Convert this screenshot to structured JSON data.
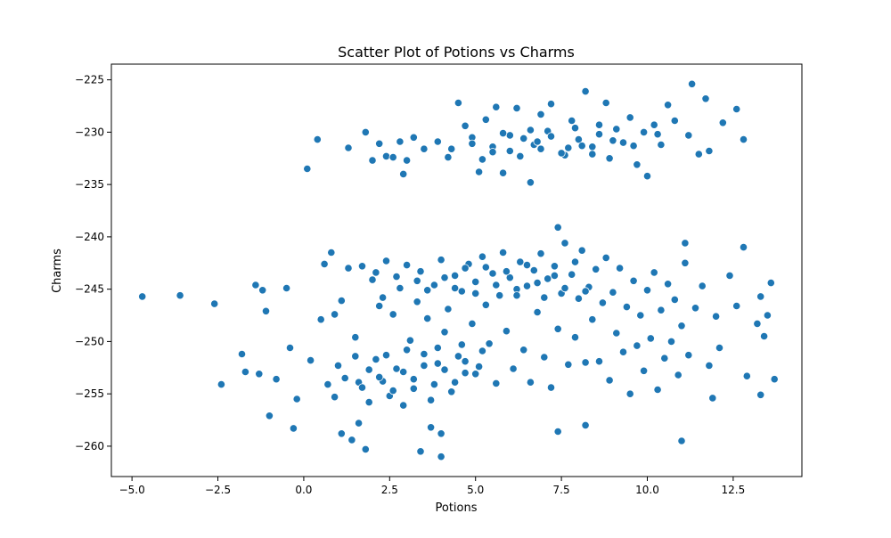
{
  "chart_data": {
    "type": "scatter",
    "title": "Scatter Plot of Potions vs Charms",
    "xlabel": "Potions",
    "ylabel": "Charms",
    "xlim": [
      -5.6,
      14.5
    ],
    "ylim": [
      -262.9,
      -223.5
    ],
    "x_ticks": [
      {
        "value": -5.0,
        "label": "−5.0"
      },
      {
        "value": -2.5,
        "label": "−2.5"
      },
      {
        "value": 0.0,
        "label": "0.0"
      },
      {
        "value": 2.5,
        "label": "2.5"
      },
      {
        "value": 5.0,
        "label": "5.0"
      },
      {
        "value": 7.5,
        "label": "7.5"
      },
      {
        "value": 10.0,
        "label": "10.0"
      },
      {
        "value": 12.5,
        "label": "12.5"
      }
    ],
    "y_ticks": [
      {
        "value": -225,
        "label": "−225"
      },
      {
        "value": -230,
        "label": "−230"
      },
      {
        "value": -235,
        "label": "−235"
      },
      {
        "value": -240,
        "label": "−240"
      },
      {
        "value": -245,
        "label": "−245"
      },
      {
        "value": -250,
        "label": "−250"
      },
      {
        "value": -255,
        "label": "−255"
      },
      {
        "value": -260,
        "label": "−260"
      }
    ],
    "grid": false,
    "legend": "none",
    "marker_color": "#1f77b4",
    "marker_edge_color": "#ffffff",
    "series": [
      {
        "points": [
          [
            -4.7,
            -245.7
          ],
          [
            -3.6,
            -245.6
          ],
          [
            -2.6,
            -246.4
          ],
          [
            -2.4,
            -254.1
          ],
          [
            -1.8,
            -251.2
          ],
          [
            -1.7,
            -252.9
          ],
          [
            -1.4,
            -244.6
          ],
          [
            -1.3,
            -253.1
          ],
          [
            -1.2,
            -245.1
          ],
          [
            -1.1,
            -247.1
          ],
          [
            -1.0,
            -257.1
          ],
          [
            -0.8,
            -253.6
          ],
          [
            -0.5,
            -244.9
          ],
          [
            -0.4,
            -250.6
          ],
          [
            -0.3,
            -258.3
          ],
          [
            -0.2,
            -255.5
          ],
          [
            0.1,
            -233.5
          ],
          [
            0.2,
            -251.8
          ],
          [
            0.4,
            -230.7
          ],
          [
            0.6,
            -242.6
          ],
          [
            0.8,
            -241.5
          ],
          [
            0.9,
            -247.4
          ],
          [
            1.0,
            -252.3
          ],
          [
            1.1,
            -258.8
          ],
          [
            1.3,
            -231.5
          ],
          [
            1.4,
            -259.4
          ],
          [
            1.6,
            -257.8
          ],
          [
            1.8,
            -230.0
          ],
          [
            1.8,
            -260.3
          ],
          [
            2.0,
            -232.7
          ],
          [
            2.2,
            -231.1
          ],
          [
            2.4,
            -232.3
          ],
          [
            2.6,
            -232.4
          ],
          [
            2.8,
            -230.9
          ],
          [
            2.9,
            -234.0
          ],
          [
            3.0,
            -232.7
          ],
          [
            3.2,
            -230.5
          ],
          [
            3.4,
            -260.5
          ],
          [
            3.5,
            -231.6
          ],
          [
            3.7,
            -258.2
          ],
          [
            3.9,
            -230.9
          ],
          [
            4.0,
            -261.0
          ],
          [
            4.0,
            -258.8
          ],
          [
            4.2,
            -232.4
          ],
          [
            4.5,
            -227.2
          ],
          [
            4.7,
            -229.4
          ],
          [
            4.9,
            -230.5
          ],
          [
            5.1,
            -233.8
          ],
          [
            5.3,
            -228.8
          ],
          [
            5.5,
            -231.4
          ],
          [
            5.6,
            -227.6
          ],
          [
            5.8,
            -233.9
          ],
          [
            6.0,
            -230.3
          ],
          [
            6.2,
            -227.7
          ],
          [
            6.4,
            -230.6
          ],
          [
            6.6,
            -234.8
          ],
          [
            6.7,
            -231.2
          ],
          [
            6.9,
            -228.3
          ],
          [
            7.1,
            -229.9
          ],
          [
            7.2,
            -227.3
          ],
          [
            7.4,
            -239.1
          ],
          [
            7.4,
            -258.6
          ],
          [
            7.6,
            -232.2
          ],
          [
            7.8,
            -228.9
          ],
          [
            8.0,
            -230.7
          ],
          [
            8.2,
            -226.1
          ],
          [
            8.2,
            -258.0
          ],
          [
            8.4,
            -231.4
          ],
          [
            8.6,
            -229.3
          ],
          [
            8.8,
            -227.2
          ],
          [
            8.9,
            -232.5
          ],
          [
            9.1,
            -229.7
          ],
          [
            9.3,
            -231.0
          ],
          [
            9.5,
            -228.6
          ],
          [
            9.7,
            -233.1
          ],
          [
            9.9,
            -230.0
          ],
          [
            10.0,
            -234.2
          ],
          [
            10.2,
            -229.3
          ],
          [
            10.4,
            -231.2
          ],
          [
            10.6,
            -227.4
          ],
          [
            10.8,
            -228.9
          ],
          [
            11.0,
            -259.5
          ],
          [
            11.1,
            -240.6
          ],
          [
            11.2,
            -230.3
          ],
          [
            11.3,
            -225.4
          ],
          [
            11.5,
            -232.1
          ],
          [
            11.7,
            -226.8
          ],
          [
            11.8,
            -231.8
          ],
          [
            11.9,
            -255.4
          ],
          [
            12.1,
            -250.6
          ],
          [
            12.2,
            -229.1
          ],
          [
            12.4,
            -243.7
          ],
          [
            12.6,
            -227.8
          ],
          [
            12.6,
            -246.6
          ],
          [
            12.8,
            -230.7
          ],
          [
            12.8,
            -241.0
          ],
          [
            12.9,
            -253.3
          ],
          [
            13.2,
            -248.3
          ],
          [
            13.3,
            -245.7
          ],
          [
            13.3,
            -255.1
          ],
          [
            13.4,
            -249.5
          ],
          [
            13.5,
            -247.5
          ],
          [
            13.6,
            -244.4
          ],
          [
            13.7,
            -253.6
          ],
          [
            0.5,
            -247.9
          ],
          [
            0.7,
            -254.1
          ],
          [
            1.1,
            -246.1
          ],
          [
            1.3,
            -243.0
          ],
          [
            1.5,
            -249.6
          ],
          [
            1.6,
            -253.9
          ],
          [
            1.7,
            -242.8
          ],
          [
            1.9,
            -255.8
          ],
          [
            2.0,
            -244.1
          ],
          [
            2.1,
            -251.7
          ],
          [
            2.2,
            -246.6
          ],
          [
            2.3,
            -253.8
          ],
          [
            2.4,
            -242.3
          ],
          [
            2.5,
            -255.2
          ],
          [
            2.6,
            -247.4
          ],
          [
            2.7,
            -252.6
          ],
          [
            2.8,
            -244.9
          ],
          [
            2.9,
            -256.1
          ],
          [
            3.0,
            -242.7
          ],
          [
            3.1,
            -249.9
          ],
          [
            3.2,
            -254.5
          ],
          [
            3.3,
            -246.2
          ],
          [
            3.4,
            -243.3
          ],
          [
            3.5,
            -251.2
          ],
          [
            3.6,
            -247.8
          ],
          [
            3.7,
            -255.6
          ],
          [
            3.8,
            -244.6
          ],
          [
            3.9,
            -252.1
          ],
          [
            4.0,
            -242.2
          ],
          [
            4.1,
            -249.1
          ],
          [
            4.2,
            -246.9
          ],
          [
            4.3,
            -254.8
          ],
          [
            4.4,
            -243.7
          ],
          [
            4.5,
            -251.4
          ],
          [
            4.6,
            -245.2
          ],
          [
            4.7,
            -253.0
          ],
          [
            4.8,
            -242.6
          ],
          [
            4.9,
            -248.3
          ],
          [
            5.0,
            -244.3
          ],
          [
            5.1,
            -252.4
          ],
          [
            5.2,
            -241.9
          ],
          [
            5.3,
            -246.5
          ],
          [
            5.4,
            -250.2
          ],
          [
            5.5,
            -243.5
          ],
          [
            5.6,
            -254.0
          ],
          [
            5.7,
            -245.6
          ],
          [
            5.8,
            -241.5
          ],
          [
            5.9,
            -249.0
          ],
          [
            6.0,
            -243.9
          ],
          [
            6.1,
            -252.6
          ],
          [
            6.2,
            -245.0
          ],
          [
            6.3,
            -242.4
          ],
          [
            6.4,
            -250.8
          ],
          [
            6.5,
            -244.7
          ],
          [
            6.6,
            -253.9
          ],
          [
            6.7,
            -243.2
          ],
          [
            6.8,
            -247.2
          ],
          [
            6.9,
            -241.6
          ],
          [
            7.0,
            -251.5
          ],
          [
            7.1,
            -244.0
          ],
          [
            7.2,
            -254.4
          ],
          [
            7.3,
            -242.8
          ],
          [
            7.4,
            -248.8
          ],
          [
            7.5,
            -245.4
          ],
          [
            7.6,
            -240.6
          ],
          [
            7.7,
            -252.2
          ],
          [
            7.8,
            -243.6
          ],
          [
            7.9,
            -249.6
          ],
          [
            8.0,
            -245.9
          ],
          [
            8.1,
            -241.3
          ],
          [
            8.2,
            -252.0
          ],
          [
            8.3,
            -244.8
          ],
          [
            8.4,
            -247.9
          ],
          [
            8.5,
            -243.1
          ],
          [
            8.6,
            -251.9
          ],
          [
            8.7,
            -246.3
          ],
          [
            8.8,
            -242.0
          ],
          [
            8.9,
            -253.7
          ],
          [
            9.0,
            -245.3
          ],
          [
            9.1,
            -249.2
          ],
          [
            9.2,
            -243.0
          ],
          [
            9.3,
            -251.0
          ],
          [
            9.4,
            -246.7
          ],
          [
            9.5,
            -255.0
          ],
          [
            9.6,
            -244.2
          ],
          [
            9.7,
            -250.4
          ],
          [
            9.8,
            -247.5
          ],
          [
            9.9,
            -252.8
          ],
          [
            10.0,
            -245.1
          ],
          [
            10.1,
            -249.7
          ],
          [
            10.2,
            -243.4
          ],
          [
            10.3,
            -254.6
          ],
          [
            10.4,
            -247.0
          ],
          [
            10.5,
            -251.6
          ],
          [
            10.6,
            -244.5
          ],
          [
            10.7,
            -250.0
          ],
          [
            10.8,
            -246.0
          ],
          [
            10.9,
            -253.2
          ],
          [
            11.0,
            -248.5
          ],
          [
            11.1,
            -242.5
          ],
          [
            11.2,
            -251.3
          ],
          [
            11.4,
            -246.8
          ],
          [
            11.6,
            -244.7
          ],
          [
            11.8,
            -252.3
          ],
          [
            12.0,
            -247.6
          ],
          [
            2.1,
            -243.4
          ],
          [
            2.3,
            -245.8
          ],
          [
            2.7,
            -243.8
          ],
          [
            3.3,
            -244.2
          ],
          [
            3.6,
            -245.1
          ],
          [
            4.1,
            -243.9
          ],
          [
            4.4,
            -244.9
          ],
          [
            4.7,
            -243.0
          ],
          [
            5.0,
            -245.4
          ],
          [
            5.3,
            -242.9
          ],
          [
            5.6,
            -244.6
          ],
          [
            5.9,
            -243.3
          ],
          [
            6.2,
            -245.6
          ],
          [
            6.5,
            -242.7
          ],
          [
            6.8,
            -244.4
          ],
          [
            7.0,
            -245.8
          ],
          [
            7.3,
            -243.7
          ],
          [
            7.6,
            -244.9
          ],
          [
            7.9,
            -242.4
          ],
          [
            8.2,
            -245.2
          ],
          [
            2.2,
            -253.4
          ],
          [
            2.6,
            -254.7
          ],
          [
            2.9,
            -252.9
          ],
          [
            3.2,
            -253.6
          ],
          [
            3.5,
            -252.3
          ],
          [
            3.8,
            -254.1
          ],
          [
            4.1,
            -252.7
          ],
          [
            4.4,
            -253.9
          ],
          [
            4.7,
            -251.9
          ],
          [
            5.0,
            -253.1
          ],
          [
            1.9,
            -252.7
          ],
          [
            1.7,
            -254.4
          ],
          [
            2.4,
            -251.3
          ],
          [
            3.0,
            -250.8
          ],
          [
            0.9,
            -255.3
          ],
          [
            1.2,
            -253.5
          ],
          [
            1.5,
            -251.4
          ],
          [
            3.9,
            -250.6
          ],
          [
            4.6,
            -250.3
          ],
          [
            5.2,
            -250.9
          ],
          [
            5.5,
            -231.9
          ],
          [
            6.3,
            -232.3
          ],
          [
            6.9,
            -231.6
          ],
          [
            7.5,
            -232.0
          ],
          [
            8.1,
            -231.3
          ],
          [
            5.8,
            -230.1
          ],
          [
            6.6,
            -229.8
          ],
          [
            7.2,
            -230.4
          ],
          [
            7.9,
            -229.6
          ],
          [
            8.6,
            -230.2
          ],
          [
            4.9,
            -231.1
          ],
          [
            5.2,
            -232.6
          ],
          [
            6.0,
            -231.8
          ],
          [
            6.8,
            -230.9
          ],
          [
            7.7,
            -231.5
          ],
          [
            8.4,
            -232.1
          ],
          [
            9.0,
            -230.8
          ],
          [
            9.6,
            -231.3
          ],
          [
            10.3,
            -230.2
          ],
          [
            4.3,
            -231.6
          ]
        ]
      }
    ]
  }
}
